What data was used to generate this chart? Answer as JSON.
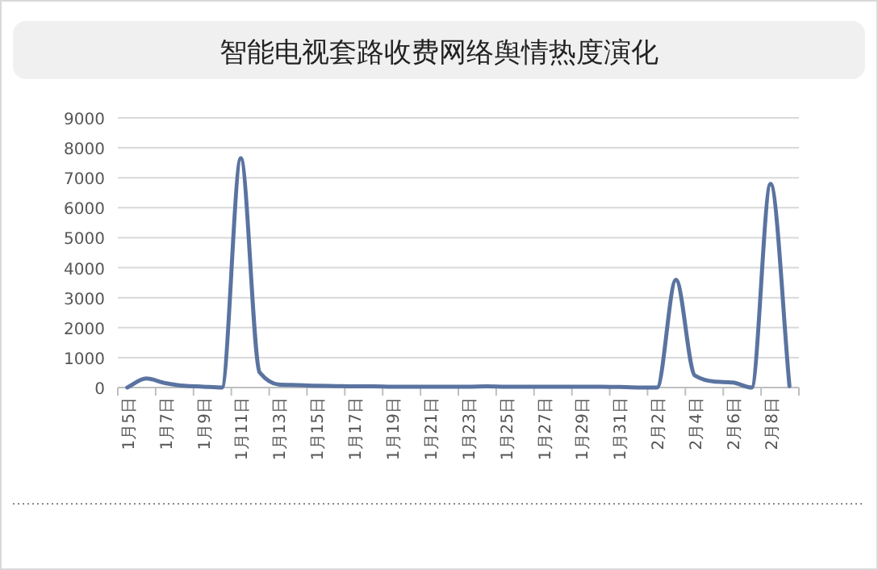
{
  "chart_data": {
    "type": "line",
    "title": "智能电视套路收费网络舆情热度演化",
    "categories": [
      "1月5日",
      null,
      "1月7日",
      null,
      "1月9日",
      null,
      "1月11日",
      null,
      "1月13日",
      null,
      "1月15日",
      null,
      "1月17日",
      null,
      "1月19日",
      null,
      "1月21日",
      null,
      "1月23日",
      null,
      "1月25日",
      null,
      "1月27日",
      null,
      "1月29日",
      null,
      "1月31日",
      null,
      "2月2日",
      null,
      "2月4日",
      null,
      "2月6日",
      null,
      "2月8日",
      null
    ],
    "values": [
      0,
      300,
      150,
      60,
      30,
      0,
      7650,
      500,
      100,
      80,
      60,
      50,
      40,
      40,
      30,
      30,
      30,
      30,
      30,
      40,
      30,
      30,
      30,
      30,
      30,
      30,
      20,
      0,
      0,
      3600,
      400,
      200,
      170,
      0,
      6800,
      50
    ],
    "color": "#5a73a0",
    "ylim": [
      0,
      9000
    ],
    "yticks": [
      0,
      1000,
      2000,
      3000,
      4000,
      5000,
      6000,
      7000,
      8000,
      9000
    ],
    "grid": "y"
  }
}
